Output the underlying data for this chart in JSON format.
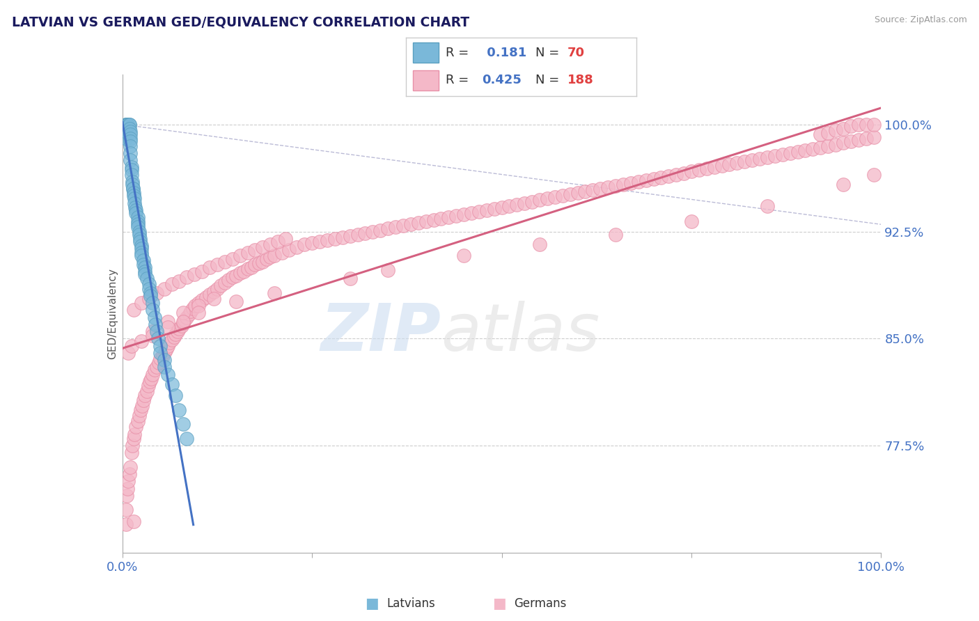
{
  "title": "LATVIAN VS GERMAN GED/EQUIVALENCY CORRELATION CHART",
  "source_text": "Source: ZipAtlas.com",
  "ylabel": "GED/Equivalency",
  "xlim": [
    0.0,
    1.0
  ],
  "ylim": [
    0.7,
    1.035
  ],
  "yticks": [
    0.775,
    0.85,
    0.925,
    1.0
  ],
  "ytick_labels": [
    "77.5%",
    "85.0%",
    "92.5%",
    "100.0%"
  ],
  "xtick_labels": [
    "0.0%",
    "100.0%"
  ],
  "xticks": [
    0.0,
    1.0
  ],
  "latvian_color": "#7ab8d9",
  "latvian_edge_color": "#5a9fc0",
  "german_color": "#f4b8c8",
  "german_edge_color": "#e890a8",
  "latvian_R": 0.181,
  "latvian_N": 70,
  "german_R": 0.425,
  "german_N": 188,
  "latvian_line_color": "#4472c4",
  "german_line_color": "#d46080",
  "diag_line_color": "#aaaacc",
  "title_color": "#1a1a5e",
  "tick_color": "#4472c4",
  "grid_color": "#c8c8c8",
  "latvian_scatter_x": [
    0.005,
    0.005,
    0.005,
    0.005,
    0.005,
    0.007,
    0.007,
    0.007,
    0.009,
    0.009,
    0.009,
    0.01,
    0.01,
    0.01,
    0.01,
    0.01,
    0.01,
    0.01,
    0.012,
    0.012,
    0.012,
    0.013,
    0.013,
    0.014,
    0.014,
    0.015,
    0.015,
    0.016,
    0.016,
    0.017,
    0.018,
    0.018,
    0.02,
    0.02,
    0.02,
    0.02,
    0.022,
    0.022,
    0.023,
    0.023,
    0.025,
    0.025,
    0.025,
    0.025,
    0.028,
    0.028,
    0.03,
    0.03,
    0.03,
    0.032,
    0.035,
    0.035,
    0.037,
    0.037,
    0.04,
    0.04,
    0.042,
    0.043,
    0.045,
    0.047,
    0.05,
    0.05,
    0.055,
    0.055,
    0.06,
    0.065,
    0.07,
    0.075,
    0.08,
    0.085
  ],
  "latvian_scatter_y": [
    0.99,
    0.995,
    1.0,
    1.0,
    1.0,
    1.0,
    1.0,
    1.0,
    1.0,
    1.0,
    0.997,
    0.995,
    0.993,
    0.99,
    0.988,
    0.985,
    0.98,
    0.975,
    0.97,
    0.968,
    0.965,
    0.96,
    0.958,
    0.955,
    0.955,
    0.952,
    0.95,
    0.948,
    0.945,
    0.942,
    0.94,
    0.938,
    0.935,
    0.932,
    0.93,
    0.928,
    0.925,
    0.923,
    0.92,
    0.918,
    0.915,
    0.913,
    0.91,
    0.908,
    0.905,
    0.902,
    0.9,
    0.897,
    0.895,
    0.892,
    0.888,
    0.885,
    0.882,
    0.88,
    0.875,
    0.87,
    0.865,
    0.86,
    0.855,
    0.85,
    0.845,
    0.84,
    0.835,
    0.83,
    0.825,
    0.818,
    0.81,
    0.8,
    0.79,
    0.78
  ],
  "german_scatter_x": [
    0.005,
    0.006,
    0.007,
    0.008,
    0.009,
    0.01,
    0.012,
    0.013,
    0.015,
    0.016,
    0.018,
    0.02,
    0.022,
    0.024,
    0.026,
    0.028,
    0.03,
    0.032,
    0.034,
    0.036,
    0.038,
    0.04,
    0.042,
    0.045,
    0.048,
    0.05,
    0.053,
    0.056,
    0.058,
    0.06,
    0.062,
    0.065,
    0.068,
    0.07,
    0.073,
    0.075,
    0.078,
    0.08,
    0.082,
    0.085,
    0.088,
    0.09,
    0.093,
    0.096,
    0.1,
    0.105,
    0.11,
    0.115,
    0.12,
    0.125,
    0.13,
    0.135,
    0.14,
    0.145,
    0.15,
    0.155,
    0.16,
    0.165,
    0.17,
    0.175,
    0.18,
    0.185,
    0.19,
    0.195,
    0.2,
    0.21,
    0.22,
    0.23,
    0.24,
    0.25,
    0.26,
    0.27,
    0.28,
    0.29,
    0.3,
    0.31,
    0.32,
    0.33,
    0.34,
    0.35,
    0.36,
    0.37,
    0.38,
    0.39,
    0.4,
    0.41,
    0.42,
    0.43,
    0.44,
    0.45,
    0.46,
    0.47,
    0.48,
    0.49,
    0.5,
    0.51,
    0.52,
    0.53,
    0.54,
    0.55,
    0.56,
    0.57,
    0.58,
    0.59,
    0.6,
    0.61,
    0.62,
    0.63,
    0.64,
    0.65,
    0.66,
    0.67,
    0.68,
    0.69,
    0.7,
    0.71,
    0.72,
    0.73,
    0.74,
    0.75,
    0.76,
    0.77,
    0.78,
    0.79,
    0.8,
    0.81,
    0.82,
    0.83,
    0.84,
    0.85,
    0.86,
    0.87,
    0.88,
    0.89,
    0.9,
    0.91,
    0.92,
    0.93,
    0.94,
    0.95,
    0.96,
    0.97,
    0.98,
    0.99,
    0.015,
    0.025,
    0.035,
    0.045,
    0.055,
    0.065,
    0.075,
    0.085,
    0.095,
    0.105,
    0.115,
    0.125,
    0.135,
    0.145,
    0.155,
    0.165,
    0.175,
    0.185,
    0.195,
    0.205,
    0.215,
    0.04,
    0.06,
    0.08,
    0.1,
    0.12,
    0.92,
    0.93,
    0.94,
    0.95,
    0.96,
    0.97,
    0.98,
    0.99,
    0.005,
    0.015,
    0.008,
    0.012,
    0.025,
    0.04,
    0.06,
    0.08,
    0.1,
    0.15,
    0.2,
    0.3,
    0.35,
    0.45,
    0.55,
    0.65,
    0.75,
    0.85,
    0.95,
    0.99
  ],
  "german_scatter_y": [
    0.73,
    0.74,
    0.745,
    0.75,
    0.755,
    0.76,
    0.77,
    0.775,
    0.78,
    0.783,
    0.788,
    0.792,
    0.796,
    0.8,
    0.803,
    0.807,
    0.81,
    0.813,
    0.817,
    0.82,
    0.822,
    0.825,
    0.828,
    0.83,
    0.833,
    0.836,
    0.838,
    0.841,
    0.843,
    0.845,
    0.847,
    0.849,
    0.851,
    0.853,
    0.855,
    0.857,
    0.859,
    0.861,
    0.863,
    0.865,
    0.867,
    0.869,
    0.871,
    0.873,
    0.875,
    0.877,
    0.879,
    0.881,
    0.883,
    0.885,
    0.887,
    0.889,
    0.891,
    0.893,
    0.894,
    0.896,
    0.897,
    0.899,
    0.9,
    0.902,
    0.903,
    0.904,
    0.906,
    0.907,
    0.908,
    0.91,
    0.912,
    0.914,
    0.916,
    0.917,
    0.918,
    0.919,
    0.92,
    0.921,
    0.922,
    0.923,
    0.924,
    0.925,
    0.926,
    0.927,
    0.928,
    0.929,
    0.93,
    0.931,
    0.932,
    0.933,
    0.934,
    0.935,
    0.936,
    0.937,
    0.938,
    0.939,
    0.94,
    0.941,
    0.942,
    0.943,
    0.944,
    0.945,
    0.946,
    0.947,
    0.948,
    0.949,
    0.95,
    0.951,
    0.952,
    0.953,
    0.954,
    0.955,
    0.956,
    0.957,
    0.958,
    0.959,
    0.96,
    0.961,
    0.962,
    0.963,
    0.964,
    0.965,
    0.966,
    0.967,
    0.968,
    0.969,
    0.97,
    0.971,
    0.972,
    0.973,
    0.974,
    0.975,
    0.976,
    0.977,
    0.978,
    0.979,
    0.98,
    0.981,
    0.982,
    0.983,
    0.984,
    0.985,
    0.986,
    0.987,
    0.988,
    0.989,
    0.99,
    0.991,
    0.87,
    0.875,
    0.878,
    0.882,
    0.885,
    0.888,
    0.89,
    0.893,
    0.895,
    0.897,
    0.9,
    0.902,
    0.904,
    0.906,
    0.908,
    0.91,
    0.912,
    0.914,
    0.916,
    0.918,
    0.92,
    0.855,
    0.862,
    0.868,
    0.873,
    0.878,
    0.993,
    0.994,
    0.996,
    0.997,
    0.999,
    1.0,
    1.0,
    1.0,
    0.72,
    0.722,
    0.84,
    0.845,
    0.848,
    0.852,
    0.858,
    0.862,
    0.868,
    0.876,
    0.882,
    0.892,
    0.898,
    0.908,
    0.916,
    0.923,
    0.932,
    0.943,
    0.958,
    0.965
  ]
}
